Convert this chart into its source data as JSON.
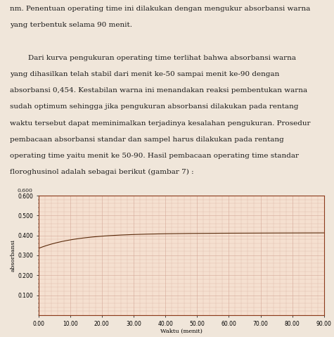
{
  "page_bg": "#f0e6da",
  "text_color": "#1a1a1a",
  "chart_bg": "#f5e0d0",
  "grid_color": "#d4a898",
  "line_color": "#5a2a0a",
  "border_color": "#8b3a1a",
  "text_lines": [
    "nm. Penentuan operating time ini dilakukan dengan mengukur absorbansi warna",
    "yang terbentuk selama 90 menit.",
    "",
    "        Dari kurva pengukuran operating time terlihat bahwa absorbansi warna",
    "yang dihasilkan telah stabil dari menit ke-50 sampai menit ke-90 dengan",
    "absorbansi 0,454. Kestabilan warna ini menandakan reaksi pembentukan warna",
    "sudah optimum sehingga jika pengukuran absorbansi dilakukan pada rentang",
    "waktu tersebut dapat meminimalkan terjadinya kesalahan pengukuran. Prosedur",
    "pembacaan absorbansi standar dan sampel harus dilakukan pada rentang",
    "operating time yaitu menit ke 50-90. Hasil pembacaan operating time standar",
    "floroghusinol adalah sebagai berikut (gambar 7) :"
  ],
  "xlabel": "Waktu (menit)",
  "ylabel": "absorbansi",
  "xlim": [
    0,
    90
  ],
  "ylim": [
    0,
    0.6
  ],
  "xticks": [
    0.0,
    10.0,
    20.0,
    30.0,
    40.0,
    50.0,
    60.0,
    70.0,
    80.0,
    90.0
  ],
  "yticks": [
    0.1,
    0.2,
    0.3,
    0.4,
    0.5,
    0.6
  ],
  "ytick_top_label": "0.600",
  "watermark_color": "#c8b0a0"
}
